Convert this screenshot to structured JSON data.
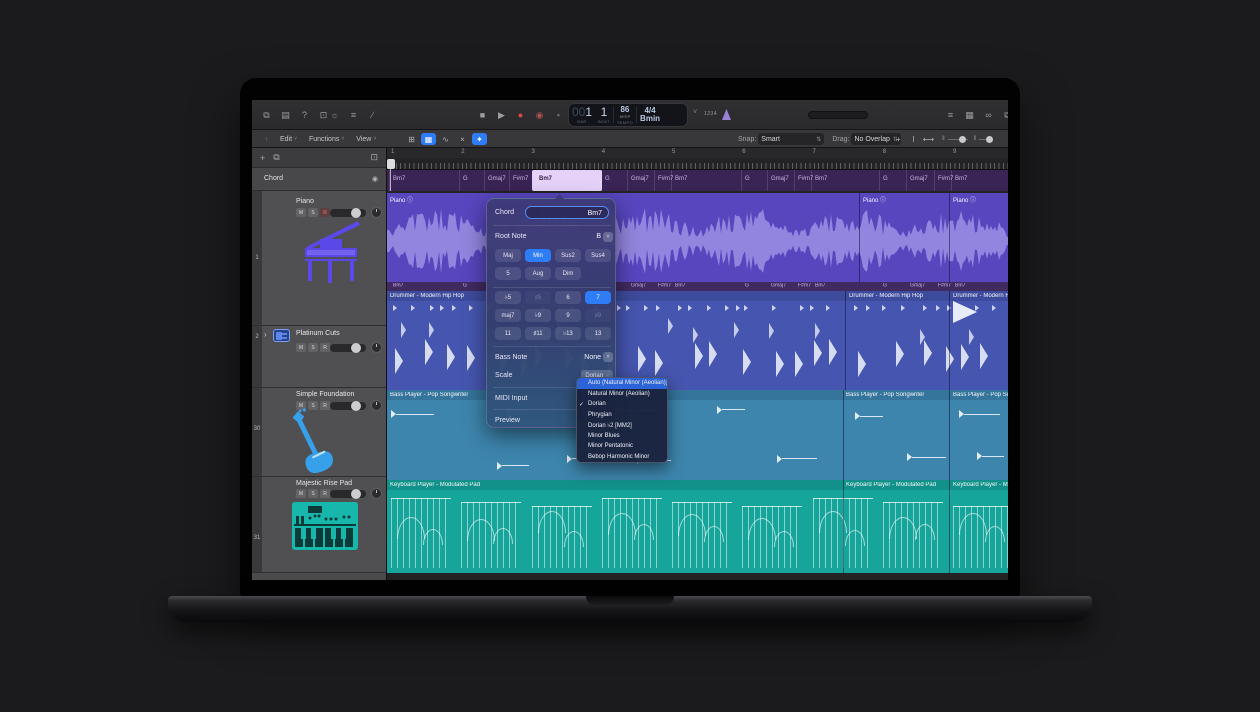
{
  "top_toolbar": {
    "left_icons_a": [
      {
        "name": "screens-icon",
        "glyph": "⧉"
      },
      {
        "name": "mixer-icon",
        "glyph": "▤"
      },
      {
        "name": "quick-help-icon",
        "glyph": "?"
      },
      {
        "name": "editors-icon",
        "glyph": "⊡"
      }
    ],
    "left_icons_b": [
      {
        "name": "smart-controls-icon",
        "glyph": "☼"
      },
      {
        "name": "mixer-sliders-icon",
        "glyph": "≡"
      },
      {
        "name": "pencil-icon",
        "glyph": "∕"
      }
    ],
    "transport": [
      {
        "name": "stop-button",
        "glyph": "■",
        "color": "gray"
      },
      {
        "name": "play-button",
        "glyph": "▶",
        "color": "gray"
      },
      {
        "name": "record-button",
        "glyph": "●",
        "color": "red"
      },
      {
        "name": "capture-record-button",
        "glyph": "◉",
        "color": "dimred"
      },
      {
        "name": "replace-button",
        "glyph": "▪",
        "color": "dim"
      },
      {
        "name": "cycle-button",
        "glyph": "⇄",
        "color": "gray"
      }
    ],
    "lcd": {
      "bar_pad": "00",
      "bar": "1",
      "beat": "1",
      "bar_label": "BAR",
      "beat_label": "BEAT",
      "tempo": "86",
      "tempo_mode": "KEEP",
      "tempo_label": "TEMPO",
      "time_sig": "4/4",
      "key": "Bmin"
    },
    "count_in": "1234",
    "right_icons": [
      {
        "name": "list-editors-icon",
        "glyph": "≡"
      },
      {
        "name": "note-pads-icon",
        "glyph": "▦"
      },
      {
        "name": "apple-loops-icon",
        "glyph": "∞"
      },
      {
        "name": "browsers-icon",
        "glyph": "⧉"
      }
    ]
  },
  "control_bar": {
    "menus": [
      {
        "label": "Edit"
      },
      {
        "label": "Functions"
      },
      {
        "label": "View"
      }
    ],
    "tools": [
      {
        "name": "grid-view-icon",
        "glyph": "⊞",
        "active": false
      },
      {
        "name": "region-view-icon",
        "glyph": "▦",
        "active": true
      },
      {
        "name": "automation-icon",
        "glyph": "∿",
        "active": false
      },
      {
        "name": "flex-icon",
        "glyph": "×",
        "active": false
      },
      {
        "name": "session-player-icon",
        "glyph": "✦",
        "active": true
      }
    ],
    "snap_label": "Snap:",
    "snap_value": "Smart",
    "drag_label": "Drag:",
    "drag_value": "No Overlap",
    "right_tools": [
      {
        "name": "pointer-tool-icon",
        "glyph": "+"
      },
      {
        "name": "text-tool-icon",
        "glyph": "I"
      },
      {
        "name": "trim-tool-icon",
        "glyph": "⟷"
      }
    ]
  },
  "track_panel": {
    "add_track_label": "+",
    "chord_track_label": "Chord",
    "msr": [
      "M",
      "S",
      "R"
    ],
    "tracks": [
      {
        "num": "1",
        "name": "Piano",
        "icon": "grand-piano-icon"
      },
      {
        "num": "2",
        "name": "Platinum Cuts",
        "icon": "drum-machine-icon"
      },
      {
        "num": "30",
        "name": "Simple Foundation",
        "icon": "bass-guitar-icon"
      },
      {
        "num": "31",
        "name": "Majestic Rise Pad",
        "icon": "synth-keys-icon"
      }
    ]
  },
  "ruler": {
    "bars": [
      "1",
      "2",
      "3",
      "4",
      "5",
      "6",
      "7",
      "8",
      "9"
    ]
  },
  "chords": [
    {
      "label": "Bm7",
      "off": 4
    },
    {
      "label": "G",
      "off": 74
    },
    {
      "label": "Gmaj7",
      "off": 99
    },
    {
      "label": "F#m7",
      "off": 124
    },
    {
      "label": "Bm7",
      "off": 150,
      "highlight": true
    },
    {
      "label": "G",
      "off": 216
    },
    {
      "label": "Gmaj7",
      "off": 242
    },
    {
      "label": "F#m7",
      "off": 269
    },
    {
      "label": "Bm7",
      "off": 286
    },
    {
      "label": "G",
      "off": 356
    },
    {
      "label": "Gmaj7",
      "off": 382
    },
    {
      "label": "F#m7",
      "off": 409
    },
    {
      "label": "Bm7",
      "off": 426
    },
    {
      "label": "G",
      "off": 494
    },
    {
      "label": "Gmaj7",
      "off": 521
    },
    {
      "label": "F#m7",
      "off": 549
    },
    {
      "label": "Bm7",
      "off": 566
    }
  ],
  "regions": {
    "piano": {
      "label": "Piano",
      "badge": "ⓘ"
    },
    "drummer": {
      "label": "Drummer - Modern Hip Hop"
    },
    "bass": {
      "label": "Bass Player - Pop Songwriter"
    },
    "keys": {
      "label": "Keyboard Player - Modulated Pad"
    }
  },
  "chord_popup": {
    "chord_label": "Chord",
    "chord_value": "Bm7",
    "root_label": "Root Note",
    "root_value": "B",
    "quality_row1": [
      "Maj",
      "Min",
      "Sus2",
      "Sus4"
    ],
    "quality_row2": [
      "5",
      "Aug",
      "Dim"
    ],
    "quality_selected": "Min",
    "ext_rows": [
      [
        "♭5",
        "♯5",
        "6",
        "7"
      ],
      [
        "maj7",
        "♭9",
        "9",
        "♯9"
      ],
      [
        "11",
        "♯11",
        "♭13",
        "13"
      ]
    ],
    "ext_selected": "7",
    "ext_disabled": [
      "♯5",
      "♯9"
    ],
    "bass_label": "Bass Note",
    "bass_value": "None",
    "scale_label": "Scale",
    "scale_value": "Dorian",
    "midi_label": "MIDI Input",
    "preview_label": "Preview"
  },
  "scale_menu": {
    "items": [
      "Auto (Natural Minor (Aeolian))",
      "Natural Minor (Aeolian)",
      "Dorian",
      "Phrygian",
      "Dorian ♭2 [MM2]",
      "Minor Blues",
      "Minor Pentatonic",
      "Bebop Harmonic Minor"
    ],
    "checked": "Dorian",
    "highlighted": "Auto (Natural Minor (Aeolian))",
    "check_glyph": "✓"
  },
  "colors": {
    "selection_blue": "#2e7cf6",
    "record_red": "#e04747",
    "metronome_purple": "#a988ea",
    "chord_highlight": "#e6d2f8",
    "piano_region": "#5746be",
    "drummer_region": "#4656b0",
    "bass_region": "#3d85ad",
    "keys_region": "#15a59a"
  }
}
